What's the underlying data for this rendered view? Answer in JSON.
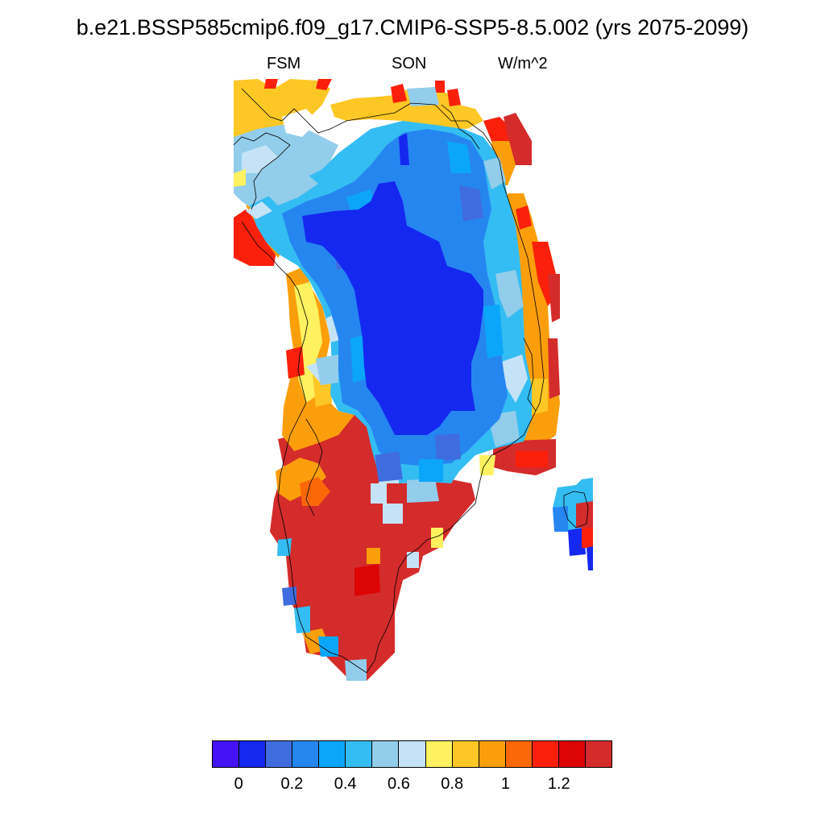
{
  "title": "b.e21.BSSP585cmip6.f09_g17.CMIP6-SSP5-8.5.002 (yrs 2075-2099)",
  "left_label": "FSM",
  "center_label": "SON",
  "right_label": "W/m^2",
  "colorbar": {
    "colors": [
      "#4413f5",
      "#1428f0",
      "#3f6ddf",
      "#2686f0",
      "#0ba6f9",
      "#34bdf2",
      "#92cdeb",
      "#c5e3f6",
      "#fff15f",
      "#fdc725",
      "#fb9e0b",
      "#fc6707",
      "#fb200b",
      "#dc0405",
      "#d42b2b"
    ],
    "labels": [
      "0",
      "0.2",
      "0.4",
      "0.6",
      "0.8",
      "1",
      "1.2"
    ]
  },
  "palette": {
    "white": "#ffffff",
    "coastline": "#000000"
  }
}
